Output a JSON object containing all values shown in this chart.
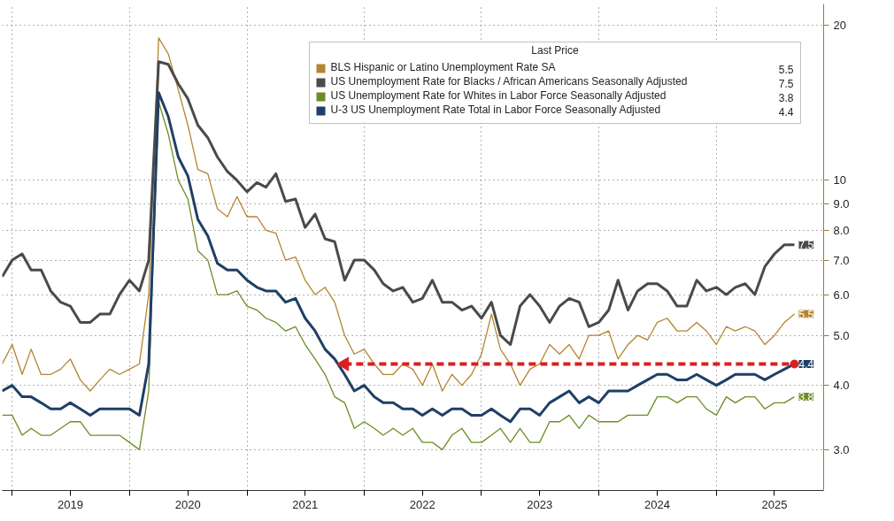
{
  "chart_data": {
    "type": "line",
    "log": "y",
    "legend": "top right",
    "legend_title": "Last Price",
    "grid": true,
    "xlim": [
      "2018-12",
      "2025-12"
    ],
    "ylim": [
      2.5,
      22
    ],
    "xticks": [
      {
        "value": "2019-01",
        "label": null
      },
      {
        "value": "2019-07",
        "label": "2019"
      },
      {
        "value": "2020-01",
        "label": null
      },
      {
        "value": "2020-07",
        "label": "2020"
      },
      {
        "value": "2021-01",
        "label": null
      },
      {
        "value": "2021-07",
        "label": "2021"
      },
      {
        "value": "2022-01",
        "label": null
      },
      {
        "value": "2022-07",
        "label": "2022"
      },
      {
        "value": "2023-01",
        "label": null
      },
      {
        "value": "2023-07",
        "label": "2023"
      },
      {
        "value": "2024-01",
        "label": null
      },
      {
        "value": "2024-07",
        "label": "2024"
      },
      {
        "value": "2025-01",
        "label": null
      },
      {
        "value": "2025-07",
        "label": "2025"
      }
    ],
    "yticks": [
      {
        "value": 3,
        "label": "3.0"
      },
      {
        "value": 4,
        "label": "4.0"
      },
      {
        "value": 5,
        "label": "5.0"
      },
      {
        "value": 6,
        "label": "6.0"
      },
      {
        "value": 7,
        "label": "7.0"
      },
      {
        "value": 8,
        "label": "8.0"
      },
      {
        "value": 9,
        "label": "9.0"
      },
      10,
      20
    ],
    "x": [
      "2018-12",
      "2019-01",
      "2019-02",
      "2019-03",
      "2019-04",
      "2019-05",
      "2019-06",
      "2019-07",
      "2019-08",
      "2019-09",
      "2019-10",
      "2019-11",
      "2019-12",
      "2020-01",
      "2020-02",
      "2020-03",
      "2020-04",
      "2020-05",
      "2020-06",
      "2020-07",
      "2020-08",
      "2020-09",
      "2020-10",
      "2020-11",
      "2020-12",
      "2021-01",
      "2021-02",
      "2021-03",
      "2021-04",
      "2021-05",
      "2021-06",
      "2021-07",
      "2021-08",
      "2021-09",
      "2021-10",
      "2021-11",
      "2021-12",
      "2022-01",
      "2022-02",
      "2022-03",
      "2022-04",
      "2022-05",
      "2022-06",
      "2022-07",
      "2022-08",
      "2022-09",
      "2022-10",
      "2022-11",
      "2022-12",
      "2023-01",
      "2023-02",
      "2023-03",
      "2023-04",
      "2023-05",
      "2023-06",
      "2023-07",
      "2023-08",
      "2023-09",
      "2023-10",
      "2023-11",
      "2023-12",
      "2024-01",
      "2024-02",
      "2024-03",
      "2024-04",
      "2024-05",
      "2024-06",
      "2024-07",
      "2024-08",
      "2024-09",
      "2024-10",
      "2024-11",
      "2024-12",
      "2025-01",
      "2025-02",
      "2025-03",
      "2025-04",
      "2025-05",
      "2025-06",
      "2025-07",
      "2025-08",
      "2025-09"
    ],
    "series": [
      {
        "name": "BLS Hispanic or Latino Unemployment Rate SA",
        "color": "#b5842e",
        "value_labels": [
          null,
          null,
          null,
          null,
          null,
          null,
          null,
          null,
          null,
          null,
          null,
          null,
          null,
          null,
          null,
          null,
          null,
          null,
          null,
          null,
          null,
          null,
          null,
          null,
          null,
          null,
          null,
          null,
          null,
          null,
          null,
          null,
          null,
          null,
          null,
          null,
          null,
          null,
          null,
          null,
          null,
          null,
          null,
          null,
          null,
          null,
          null,
          null,
          null,
          null,
          null,
          null,
          null,
          null,
          null,
          null,
          null,
          null,
          null,
          null,
          null,
          null,
          null,
          null,
          null,
          null,
          null,
          null,
          null,
          null,
          null,
          null,
          null,
          null,
          null,
          null,
          null,
          null,
          null,
          null,
          null,
          "5.5"
        ],
        "values": [
          4.4,
          4.8,
          4.2,
          4.7,
          4.2,
          4.2,
          4.3,
          4.5,
          4.1,
          3.9,
          4.1,
          4.3,
          4.2,
          4.3,
          4.4,
          6.0,
          18.9,
          17.6,
          15.0,
          12.8,
          10.5,
          10.3,
          8.8,
          8.5,
          9.3,
          8.5,
          8.5,
          8.0,
          7.9,
          7.0,
          7.1,
          6.4,
          6.0,
          6.2,
          5.8,
          5.0,
          4.6,
          4.7,
          4.4,
          4.2,
          4.2,
          4.4,
          4.3,
          4.0,
          4.4,
          3.9,
          4.2,
          4.0,
          4.2,
          4.6,
          5.5,
          4.7,
          4.4,
          4.0,
          4.3,
          4.4,
          4.8,
          4.6,
          4.8,
          4.5,
          5.0,
          5.0,
          5.1,
          4.5,
          4.8,
          5.0,
          4.9,
          5.3,
          5.4,
          5.1,
          5.1,
          5.3,
          5.1,
          4.8,
          5.2,
          5.1,
          5.2,
          5.1,
          4.8,
          5.0,
          5.3,
          5.5
        ]
      },
      {
        "name": "US Unemployment Rate for Blacks / African Americans Seasonally Adjusted",
        "color": "#4a4a4a",
        "value_labels": [
          null,
          null,
          null,
          null,
          null,
          null,
          null,
          null,
          null,
          null,
          null,
          null,
          null,
          null,
          null,
          null,
          null,
          null,
          null,
          null,
          null,
          null,
          null,
          null,
          null,
          null,
          null,
          null,
          null,
          null,
          null,
          null,
          null,
          null,
          null,
          null,
          null,
          null,
          null,
          null,
          null,
          null,
          null,
          null,
          null,
          null,
          null,
          null,
          null,
          null,
          null,
          null,
          null,
          null,
          null,
          null,
          null,
          null,
          null,
          null,
          null,
          null,
          null,
          null,
          null,
          null,
          null,
          null,
          null,
          null,
          null,
          null,
          null,
          null,
          null,
          null,
          null,
          null,
          null,
          null,
          null,
          "7.5"
        ],
        "values": [
          6.5,
          7.0,
          7.2,
          6.7,
          6.7,
          6.1,
          5.8,
          5.7,
          5.3,
          5.3,
          5.5,
          5.5,
          6.0,
          6.4,
          6.1,
          7.0,
          17.0,
          16.8,
          15.4,
          14.4,
          12.8,
          12.1,
          11.1,
          10.4,
          10.0,
          9.5,
          9.9,
          9.7,
          10.3,
          9.1,
          9.2,
          8.1,
          8.6,
          7.7,
          7.6,
          6.4,
          7.0,
          7.0,
          6.7,
          6.3,
          6.1,
          6.2,
          5.8,
          5.9,
          6.4,
          5.8,
          5.8,
          5.6,
          5.7,
          5.4,
          5.8,
          5.0,
          4.8,
          5.7,
          6.0,
          5.7,
          5.3,
          5.7,
          5.9,
          5.8,
          5.2,
          5.3,
          5.6,
          6.4,
          5.6,
          6.1,
          6.3,
          6.3,
          6.1,
          5.7,
          5.7,
          6.4,
          6.1,
          6.2,
          6.0,
          6.2,
          6.3,
          6.0,
          6.8,
          7.2,
          7.5,
          7.5
        ]
      },
      {
        "name": "US Unemployment Rate for Whites in Labor Force Seasonally Adjusted",
        "color": "#6b8e23",
        "value_labels": [
          null,
          null,
          null,
          null,
          null,
          null,
          null,
          null,
          null,
          null,
          null,
          null,
          null,
          null,
          null,
          null,
          null,
          null,
          null,
          null,
          null,
          null,
          null,
          null,
          null,
          null,
          null,
          null,
          null,
          null,
          null,
          null,
          null,
          null,
          null,
          null,
          null,
          null,
          null,
          null,
          null,
          null,
          null,
          null,
          null,
          null,
          null,
          null,
          null,
          null,
          null,
          null,
          null,
          null,
          null,
          null,
          null,
          null,
          null,
          null,
          null,
          null,
          null,
          null,
          null,
          null,
          null,
          null,
          null,
          null,
          null,
          null,
          null,
          null,
          null,
          null,
          null,
          null,
          null,
          null,
          null,
          "3.8"
        ],
        "values": [
          3.5,
          3.5,
          3.2,
          3.3,
          3.2,
          3.2,
          3.3,
          3.4,
          3.4,
          3.2,
          3.2,
          3.2,
          3.2,
          3.1,
          3.0,
          3.9,
          14.2,
          12.3,
          10.0,
          9.2,
          7.3,
          7.0,
          6.0,
          6.0,
          6.1,
          5.7,
          5.6,
          5.4,
          5.3,
          5.1,
          5.2,
          4.8,
          4.5,
          4.2,
          3.8,
          3.7,
          3.3,
          3.4,
          3.3,
          3.2,
          3.3,
          3.2,
          3.3,
          3.1,
          3.1,
          3.0,
          3.2,
          3.3,
          3.1,
          3.1,
          3.2,
          3.3,
          3.1,
          3.3,
          3.1,
          3.1,
          3.4,
          3.4,
          3.5,
          3.3,
          3.5,
          3.4,
          3.4,
          3.4,
          3.5,
          3.5,
          3.5,
          3.8,
          3.8,
          3.7,
          3.8,
          3.8,
          3.6,
          3.5,
          3.8,
          3.7,
          3.8,
          3.8,
          3.6,
          3.7,
          3.7,
          3.8
        ]
      },
      {
        "name": "U-3 US Unemployment Rate Total in Labor Force Seasonally Adjusted",
        "color": "#1f3f66",
        "value_labels": [
          null,
          null,
          null,
          null,
          null,
          null,
          null,
          null,
          null,
          null,
          null,
          null,
          null,
          null,
          null,
          null,
          null,
          null,
          null,
          null,
          null,
          null,
          null,
          null,
          null,
          null,
          null,
          null,
          null,
          null,
          null,
          null,
          null,
          null,
          null,
          null,
          null,
          null,
          null,
          null,
          null,
          null,
          null,
          null,
          null,
          null,
          null,
          null,
          null,
          null,
          null,
          null,
          null,
          null,
          null,
          null,
          null,
          null,
          null,
          null,
          null,
          null,
          null,
          null,
          null,
          null,
          null,
          null,
          null,
          null,
          null,
          null,
          null,
          null,
          null,
          null,
          null,
          null,
          null,
          null,
          null,
          "4.4"
        ],
        "values": [
          3.9,
          4.0,
          3.8,
          3.8,
          3.7,
          3.6,
          3.6,
          3.7,
          3.6,
          3.5,
          3.6,
          3.6,
          3.6,
          3.6,
          3.5,
          4.4,
          14.8,
          13.3,
          11.1,
          10.2,
          8.4,
          7.8,
          6.9,
          6.7,
          6.7,
          6.4,
          6.2,
          6.1,
          6.1,
          5.8,
          5.9,
          5.4,
          5.1,
          4.7,
          4.5,
          4.2,
          3.9,
          4.0,
          3.8,
          3.7,
          3.7,
          3.6,
          3.6,
          3.5,
          3.6,
          3.5,
          3.6,
          3.6,
          3.5,
          3.5,
          3.6,
          3.5,
          3.4,
          3.6,
          3.6,
          3.5,
          3.7,
          3.8,
          3.9,
          3.7,
          3.8,
          3.7,
          3.9,
          3.9,
          3.9,
          4.0,
          4.1,
          4.2,
          4.2,
          4.1,
          4.1,
          4.2,
          4.1,
          4.0,
          4.1,
          4.2,
          4.2,
          4.2,
          4.1,
          4.2,
          4.3,
          4.4
        ]
      },
      {
        "type": "line",
        "color": "#d9201f",
        "line_style": "dashed",
        "marker": "triangle",
        "x": [
          "2021-11",
          "2025-09"
        ],
        "values": [
          4.4,
          4.4
        ]
      }
    ]
  }
}
